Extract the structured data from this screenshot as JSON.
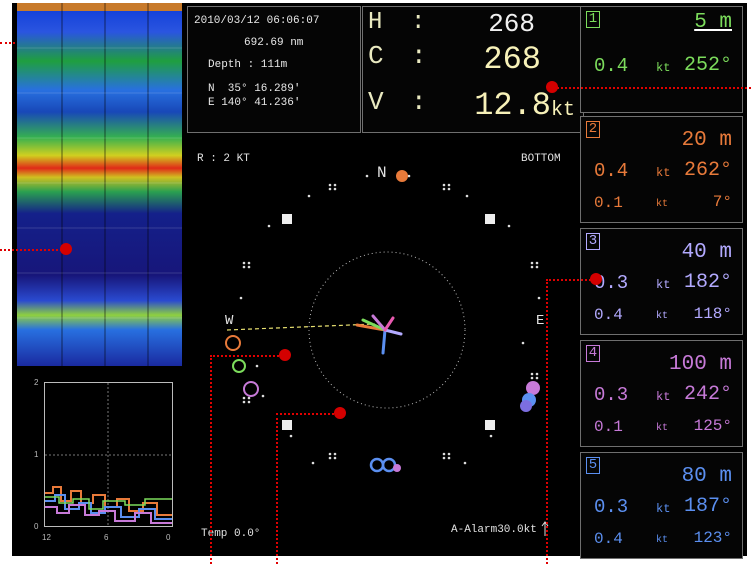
{
  "info": {
    "datetime": "2010/03/12 06:06:07",
    "distance": "692.69 nm",
    "depth": "Depth : 111m",
    "lat": "N  35° 16.289'",
    "lon": "E 140° 41.236'"
  },
  "hcv": {
    "h_label": "H",
    "h_value": "268",
    "c_label": "C",
    "c_value": "268",
    "v_label": "V",
    "v_value": "12.8",
    "v_unit": "kt",
    "colon": ":"
  },
  "radar": {
    "range": "R : 2 KT",
    "mode": "BOTTOM",
    "north": "N",
    "west": "W",
    "east": "E",
    "temp": "Temp  0.0°",
    "alarm": "A-Alarm30.0kt"
  },
  "graph": {
    "y_top": "2",
    "y_mid": "1",
    "y_bot": "0",
    "x_left": "12",
    "x_mid": "6",
    "x_right": "0"
  },
  "layers": [
    {
      "num": "1",
      "depth": "5 m",
      "speed": "0.4",
      "unit": "kt",
      "dir": "252°",
      "speed2": "",
      "dir2": "",
      "color": "#7cdc5c"
    },
    {
      "num": "2",
      "depth": "20 m",
      "speed": "0.4",
      "unit": "kt",
      "dir": "262°",
      "speed2": "0.1",
      "dir2": "7°",
      "color": "#e87a3a"
    },
    {
      "num": "3",
      "depth": "40 m",
      "speed": "0.3",
      "unit": "kt",
      "dir": "182°",
      "speed2": "0.4",
      "dir2": "118°",
      "color": "#b3aaff"
    },
    {
      "num": "4",
      "depth": "100 m",
      "speed": "0.3",
      "unit": "kt",
      "dir": "242°",
      "speed2": "0.1",
      "dir2": "125°",
      "color": "#c77ad8"
    },
    {
      "num": "5",
      "depth": "80 m",
      "speed": "0.3",
      "unit": "kt",
      "dir": "187°",
      "speed2": "0.4",
      "dir2": "123°",
      "color": "#5b8ff0"
    }
  ],
  "colors": {
    "annotation": "#d40000",
    "background": "#000000"
  }
}
